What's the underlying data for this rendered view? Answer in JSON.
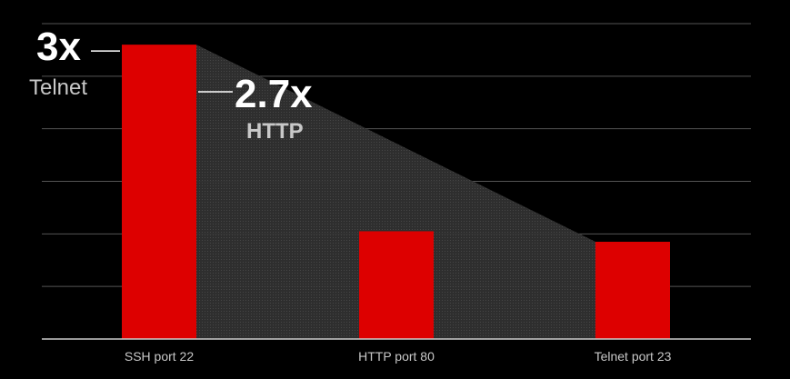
{
  "chart_data": {
    "type": "bar",
    "categories": [
      "SSH port 22",
      "HTTP port 80",
      "Telnet port 23"
    ],
    "values": [
      5.6,
      2.05,
      1.85
    ],
    "ylim": [
      0,
      6
    ],
    "grid": true,
    "legend": "none",
    "colors": {
      "bar": "#dd0000",
      "background": "#000000",
      "grid": "#555555",
      "axis": "#cccccc",
      "wedge": "#3a3a3a"
    },
    "annotations": [
      {
        "value": "3x",
        "label": "Telnet"
      },
      {
        "value": "2.7x",
        "label": "HTTP"
      }
    ]
  }
}
